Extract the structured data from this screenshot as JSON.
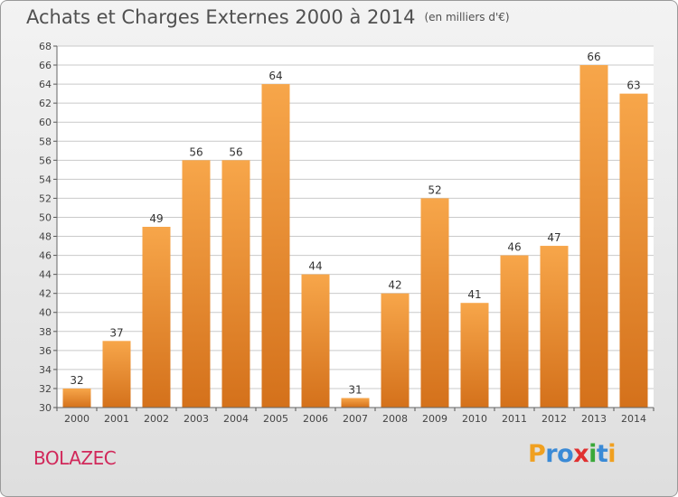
{
  "header": {
    "title": "Achats et Charges Externes 2000 à 2014",
    "unit": "(en milliers d'€)"
  },
  "footer": {
    "place": "BOLAZEC",
    "logo": {
      "letters": [
        "P",
        "r",
        "o",
        "x",
        "i",
        "t",
        "i"
      ],
      "colors": [
        "#f0a020",
        "#3a8ad6",
        "#3a8ad6",
        "#e03030",
        "#3aa83a",
        "#3a8ad6",
        "#f0a020"
      ]
    }
  },
  "chart_data": {
    "type": "bar",
    "title": "Achats et Charges Externes 2000 à 2014",
    "subtitle": "(en milliers d'€)",
    "categories": [
      "2000",
      "2001",
      "2002",
      "2003",
      "2004",
      "2005",
      "2006",
      "2007",
      "2008",
      "2009",
      "2010",
      "2011",
      "2012",
      "2013",
      "2014"
    ],
    "values": [
      32,
      37,
      49,
      56,
      56,
      64,
      44,
      31,
      42,
      52,
      41,
      46,
      47,
      66,
      63
    ],
    "ylim": [
      30,
      68
    ],
    "yticks": [
      30,
      32,
      34,
      36,
      38,
      40,
      42,
      44,
      46,
      48,
      50,
      52,
      54,
      56,
      58,
      60,
      62,
      64,
      66,
      68
    ],
    "grid": true,
    "colors": {
      "bar_light": "#f7a64a",
      "bar_dark": "#d4711b",
      "grid": "#c9c9c9"
    }
  }
}
